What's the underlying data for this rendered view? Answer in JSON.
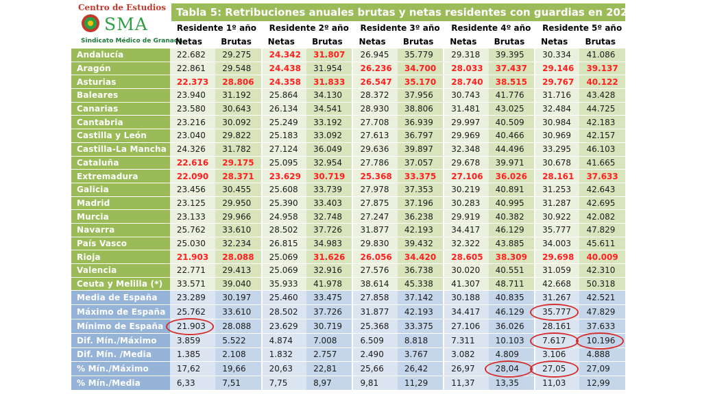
{
  "logo": {
    "line1": "Centro de Estudios",
    "brand": "SMA",
    "line2": "Sindicato Médico de Granada"
  },
  "title": "Tabla 5: Retribuciones anuales brutas y netas residentes con guardias en 2021",
  "groups": [
    "Residente 1º año",
    "Residente 2º año",
    "Residente 3º año",
    "Residente 4º año",
    "Residente 5º año"
  ],
  "subheaders": [
    "Netas",
    "Brutas"
  ],
  "regions": [
    {
      "name": "Andalucía",
      "values": [
        "22.682",
        "29.275",
        "24.342",
        "31.807",
        "26.945",
        "35.779",
        "29.318",
        "39.395",
        "30.334",
        "41.086"
      ],
      "red": [
        2,
        3
      ]
    },
    {
      "name": "Aragón",
      "values": [
        "22.861",
        "29.548",
        "24.438",
        "31.954",
        "26.236",
        "34.700",
        "28.033",
        "37.437",
        "29.146",
        "39.137"
      ],
      "red": [
        2,
        4,
        5,
        6,
        7,
        8,
        9
      ]
    },
    {
      "name": "Asturias",
      "values": [
        "22.373",
        "28.806",
        "24.358",
        "31.833",
        "26.547",
        "35.170",
        "28.740",
        "38.515",
        "29.767",
        "40.122"
      ],
      "red": [
        0,
        1,
        2,
        3,
        4,
        5,
        6,
        7,
        8,
        9
      ]
    },
    {
      "name": "Baleares",
      "values": [
        "23.940",
        "31.192",
        "25.864",
        "34.130",
        "28.372",
        "37.956",
        "30.743",
        "41.776",
        "31.716",
        "43.428"
      ],
      "red": []
    },
    {
      "name": "Canarias",
      "values": [
        "23.580",
        "30.643",
        "26.134",
        "34.541",
        "28.930",
        "38.806",
        "31.481",
        "43.025",
        "32.484",
        "44.725"
      ],
      "red": []
    },
    {
      "name": "Cantabria",
      "values": [
        "23.216",
        "30.092",
        "25.249",
        "33.192",
        "27.708",
        "36.939",
        "29.997",
        "40.509",
        "30.984",
        "42.183"
      ],
      "red": []
    },
    {
      "name": "Castilla y León",
      "values": [
        "23.040",
        "29.822",
        "25.183",
        "33.092",
        "27.613",
        "36.797",
        "29.969",
        "40.466",
        "30.969",
        "42.157"
      ],
      "red": []
    },
    {
      "name": "Castilla-La Mancha",
      "values": [
        "24.326",
        "31.782",
        "27.124",
        "36.049",
        "29.636",
        "39.897",
        "32.348",
        "44.496",
        "33.295",
        "46.103"
      ],
      "red": []
    },
    {
      "name": "Cataluña",
      "values": [
        "22.616",
        "29.175",
        "25.095",
        "32.954",
        "27.786",
        "37.057",
        "29.678",
        "39.971",
        "30.678",
        "41.665"
      ],
      "red": [
        0,
        1
      ]
    },
    {
      "name": "Extremadura",
      "values": [
        "22.090",
        "28.371",
        "23.629",
        "30.719",
        "25.368",
        "33.375",
        "27.106",
        "36.026",
        "28.161",
        "37.633"
      ],
      "red": [
        0,
        1,
        2,
        3,
        4,
        5,
        6,
        7,
        8,
        9
      ]
    },
    {
      "name": "Galicia",
      "values": [
        "23.456",
        "30.455",
        "25.608",
        "33.739",
        "27.978",
        "37.353",
        "30.219",
        "40.891",
        "31.253",
        "42.643"
      ],
      "red": []
    },
    {
      "name": "Madrid",
      "values": [
        "23.125",
        "29.950",
        "25.390",
        "33.403",
        "27.875",
        "37.196",
        "30.283",
        "40.995",
        "31.287",
        "42.695"
      ],
      "red": []
    },
    {
      "name": "Murcia",
      "values": [
        "23.133",
        "29.966",
        "24.958",
        "32.748",
        "27.247",
        "36.238",
        "29.919",
        "40.382",
        "30.922",
        "42.082"
      ],
      "red": []
    },
    {
      "name": "Navarra",
      "values": [
        "25.762",
        "33.610",
        "28.502",
        "37.726",
        "31.877",
        "42.193",
        "34.417",
        "46.129",
        "35.777",
        "47.829"
      ],
      "red": []
    },
    {
      "name": "País Vasco",
      "values": [
        "25.030",
        "32.234",
        "26.815",
        "34.983",
        "29.830",
        "39.432",
        "32.322",
        "43.885",
        "34.003",
        "45.611"
      ],
      "red": []
    },
    {
      "name": "Rioja",
      "values": [
        "21.903",
        "28.088",
        "25.069",
        "31.626",
        "26.056",
        "34.420",
        "28.605",
        "38.309",
        "29.698",
        "40.009"
      ],
      "red": [
        0,
        1,
        3,
        4,
        5,
        6,
        7,
        8,
        9
      ]
    },
    {
      "name": "Valencia",
      "values": [
        "22.771",
        "29.413",
        "25.069",
        "32.916",
        "27.576",
        "36.738",
        "30.020",
        "40.551",
        "31.059",
        "42.310"
      ],
      "red": []
    },
    {
      "name": "Ceuta y Melilla (*)",
      "values": [
        "33.571",
        "39.040",
        "35.933",
        "41.978",
        "38.614",
        "45.338",
        "41.307",
        "48.711",
        "42.668",
        "50.318"
      ],
      "red": []
    }
  ],
  "stats": [
    {
      "name": "Media de España",
      "values": [
        "23.289",
        "30.197",
        "25.460",
        "33.475",
        "27.858",
        "37.142",
        "30.188",
        "40.835",
        "31.267",
        "42.521"
      ]
    },
    {
      "name": "Máximo de España",
      "values": [
        "25.762",
        "33.610",
        "28.502",
        "37.726",
        "31.877",
        "42.193",
        "34.417",
        "46.129",
        "35.777",
        "47.829"
      ]
    },
    {
      "name": "Mínimo de España",
      "values": [
        "21.903",
        "28.088",
        "23.629",
        "30.719",
        "25.368",
        "33.375",
        "27.106",
        "36.026",
        "28.161",
        "37.633"
      ]
    },
    {
      "name": "Dif. Mín./Máximo",
      "values": [
        "3.859",
        "5.522",
        "4.874",
        "7.008",
        "6.509",
        "8.818",
        "7.311",
        "10.103",
        "7.617",
        "10.196"
      ]
    },
    {
      "name": "Dif. Mín. /Media",
      "values": [
        "1.385",
        "2.108",
        "1.832",
        "2.757",
        "2.490",
        "3.767",
        "3.082",
        "4.809",
        "3.106",
        "4.888"
      ]
    },
    {
      "name": "% Mín./Máximo",
      "values": [
        "17,62",
        "19,66",
        "20,63",
        "22,81",
        "25,66",
        "26,42",
        "26,97",
        "28,04",
        "27,05",
        "27,09"
      ]
    },
    {
      "name": "% Mín./Media",
      "values": [
        "6,33",
        "7,51",
        "7,75",
        "8,97",
        "9,81",
        "11,29",
        "11,37",
        "13,35",
        "11,03",
        "12,99"
      ]
    }
  ],
  "colors": {
    "green": "#9bbb59",
    "blue": "#95b3d7",
    "highlight": "#ff2020",
    "circle": "#d32f2f"
  }
}
